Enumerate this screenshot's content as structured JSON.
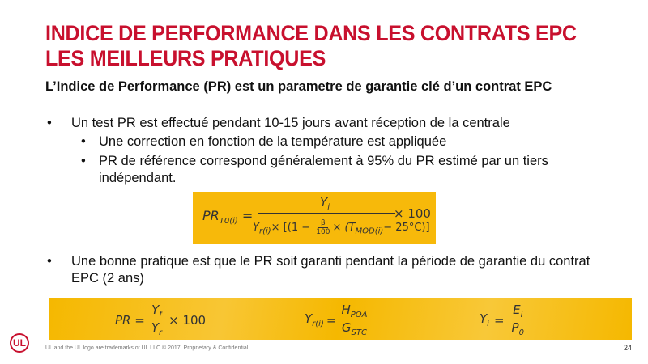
{
  "title": [
    "INDICE DE PERFORMANCE DANS LES CONTRATS EPC",
    "LES MEILLEURS PRATIQUES"
  ],
  "subtitle": "L’Indice de Performance (PR) est un parametre de garantie clé d’un contrat EPC",
  "bullets": [
    "Un test PR est effectué pendant 10-15 jours avant réception de la centrale",
    "Une correction en fonction de la température est appliquée",
    "PR de référence correspond généralement à 95% du PR estimé par un tiers indépendant.",
    "Une bonne pratique est que le PR soit garanti pendant la période de garantie du contrat EPC (2 ans)"
  ],
  "bullet_char": "•",
  "formula_main": {
    "lhs": "PR",
    "lhs_sub": "T0(i)",
    "eq": "=",
    "num": "Y",
    "num_sub": "i",
    "den_a": "Y",
    "den_a_sub": "r(i)",
    "den_b": "× [(1 −",
    "beta": "β",
    "hundred": "100",
    "den_c": "× (T",
    "den_c_sub": "MOD(i)",
    "den_d": "− 25°C)]",
    "times": "× 100"
  },
  "formulas": [
    {
      "lhs": "PR =",
      "num": "Y",
      "num_sub": "f",
      "den": "Y",
      "den_sub": "r",
      "tail": "× 100"
    },
    {
      "lhs": "Y",
      "lhs_sub": "r(i)",
      "eq": "=",
      "num": "H",
      "num_sub": "POA",
      "den": "G",
      "den_sub": "STC"
    },
    {
      "lhs": "Y",
      "lhs_sub": "i",
      "eq": "=",
      "num": "E",
      "num_sub": "i",
      "den": "P",
      "den_sub": "0"
    }
  ],
  "footer": {
    "logo": "UL",
    "legal": "UL and the UL logo are trademarks of UL LLC © 2017. Proprietary & Confidential.",
    "page": "24"
  },
  "colors": {
    "title": "#c8102e",
    "formula_bg": "#f5b800"
  }
}
